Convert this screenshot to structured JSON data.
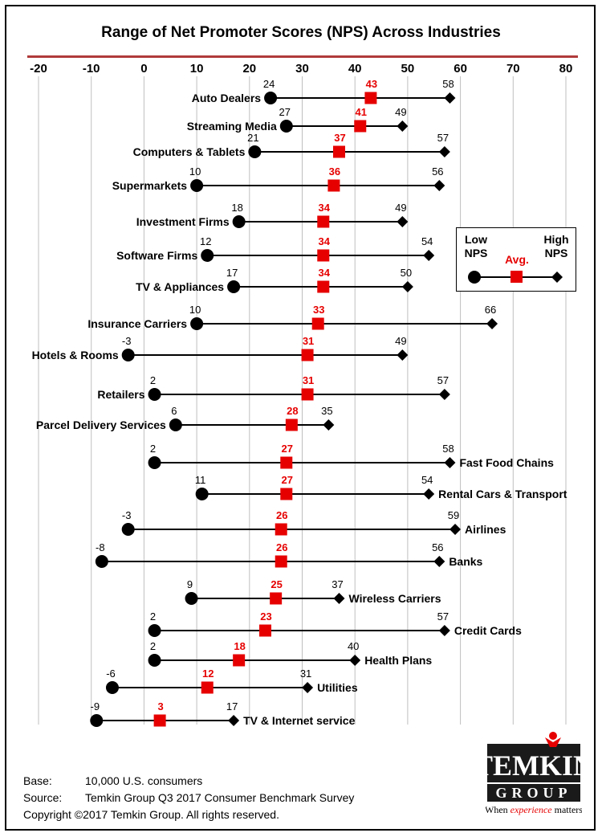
{
  "title": "Range of Net Promoter Scores (NPS) Across Industries",
  "chart_data": {
    "type": "range",
    "title": "Range of Net Promoter Scores (NPS) Across Industries",
    "xlim": [
      -20,
      80
    ],
    "xticks": [
      -20,
      -10,
      0,
      10,
      20,
      30,
      40,
      50,
      60,
      70,
      80
    ],
    "grid": true,
    "legend_position": "right",
    "series": [
      {
        "name": "Low NPS",
        "marker": "circle",
        "color": "#000000"
      },
      {
        "name": "Avg.",
        "marker": "square",
        "color": "#e60000"
      },
      {
        "name": "High NPS",
        "marker": "diamond",
        "color": "#000000"
      }
    ],
    "industries": [
      {
        "name": "Auto Dealers",
        "low": 24,
        "avg": 43,
        "high": 58
      },
      {
        "name": "Streaming Media",
        "low": 27,
        "avg": 41,
        "high": 49
      },
      {
        "name": "Computers & Tablets",
        "low": 21,
        "avg": 37,
        "high": 57
      },
      {
        "name": "Supermarkets",
        "low": 10,
        "avg": 36,
        "high": 56
      },
      {
        "name": "Investment Firms",
        "low": 18,
        "avg": 34,
        "high": 49
      },
      {
        "name": "Software Firms",
        "low": 12,
        "avg": 34,
        "high": 54
      },
      {
        "name": "TV & Appliances",
        "low": 17,
        "avg": 34,
        "high": 50
      },
      {
        "name": "Insurance Carriers",
        "low": 10,
        "avg": 33,
        "high": 66
      },
      {
        "name": "Hotels & Rooms",
        "low": -3,
        "avg": 31,
        "high": 49
      },
      {
        "name": "Retailers",
        "low": 2,
        "avg": 31,
        "high": 57
      },
      {
        "name": "Parcel Delivery Services",
        "low": 6,
        "avg": 28,
        "high": 35
      },
      {
        "name": "Fast Food Chains",
        "low": 2,
        "avg": 27,
        "high": 58
      },
      {
        "name": "Rental Cars & Transport",
        "low": 11,
        "avg": 27,
        "high": 54
      },
      {
        "name": "Airlines",
        "low": -3,
        "avg": 26,
        "high": 59
      },
      {
        "name": "Banks",
        "low": -8,
        "avg": 26,
        "high": 56
      },
      {
        "name": "Wireless Carriers",
        "low": 9,
        "avg": 25,
        "high": 37
      },
      {
        "name": "Credit Cards",
        "low": 2,
        "avg": 23,
        "high": 57
      },
      {
        "name": "Health Plans",
        "low": 2,
        "avg": 18,
        "high": 40
      },
      {
        "name": "Utilities",
        "low": -6,
        "avg": 12,
        "high": 31
      },
      {
        "name": "TV & Internet service",
        "low": -9,
        "avg": 3,
        "high": 17
      }
    ]
  },
  "legend": {
    "low_label_1": "Low",
    "low_label_2": "NPS",
    "avg_label": "Avg.",
    "high_label_1": "High",
    "high_label_2": "NPS"
  },
  "footer": {
    "base_key": "Base:",
    "base_value": "10,000 U.S. consumers",
    "source_key": "Source:",
    "source_value": "Temkin Group Q3 2017 Consumer Benchmark Survey",
    "copyright": "Copyright ©2017 Temkin Group. All rights reserved."
  },
  "logo": {
    "line1": "TEMKIN",
    "line2": "GROUP",
    "tagline_pre": "When ",
    "tagline_emph": "experience",
    "tagline_post": " matters"
  },
  "colors": {
    "accent_red": "#e60000",
    "title_rule": "#b03a3a",
    "grid": "#bfbfbf",
    "logo_bg": "#1a1a1a"
  }
}
